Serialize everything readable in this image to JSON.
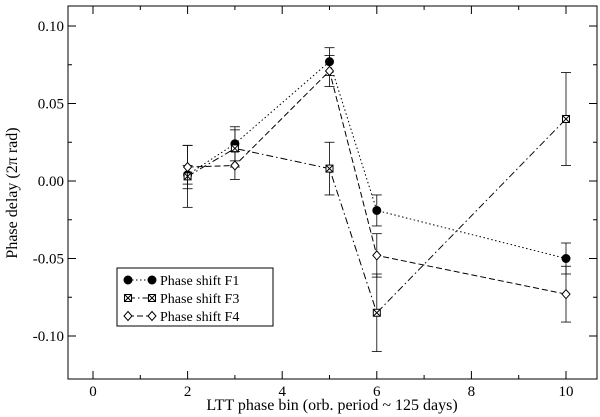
{
  "chart_data": {
    "type": "line",
    "xlabel": "LTT phase bin (orb. period ~ 125 days)",
    "ylabel": "Phase delay (2π rad)",
    "xlim": [
      -0.6,
      10.6
    ],
    "ylim": [
      -0.125,
      0.12
    ],
    "xticks": [
      0,
      2,
      4,
      6,
      8,
      10
    ],
    "yticks": [
      -0.1,
      -0.05,
      0.0,
      0.05,
      0.1
    ],
    "xtick_labels": [
      "0",
      "2",
      "4",
      "6",
      "8",
      "10"
    ],
    "ytick_labels": [
      "-0.10",
      "-0.05",
      "0.00",
      "0.05",
      "0.10"
    ],
    "grid": false,
    "legend_position": "lower-left",
    "series": [
      {
        "name": "Phase shift F1",
        "marker": "filled-circle",
        "dash": "dotted",
        "x": [
          2,
          3,
          5,
          6,
          10
        ],
        "y": [
          0.004,
          0.024,
          0.077,
          -0.019,
          -0.05
        ],
        "yerr": [
          0.006,
          0.011,
          0.009,
          0.01,
          0.01
        ]
      },
      {
        "name": "Phase shift F3",
        "marker": "crossed-square",
        "dash": "dash-dot",
        "x": [
          2,
          3,
          5,
          6,
          10
        ],
        "y": [
          0.003,
          0.021,
          0.008,
          -0.085,
          0.04
        ],
        "yerr": [
          0.02,
          0.012,
          0.017,
          0.025,
          0.03
        ]
      },
      {
        "name": "Phase shift F4",
        "marker": "open-diamond",
        "dash": "dashed",
        "x": [
          2,
          3,
          5,
          6,
          10
        ],
        "y": [
          0.009,
          0.01,
          0.071,
          -0.048,
          -0.073
        ],
        "yerr": [
          0.014,
          0.009,
          0.01,
          0.014,
          0.018
        ]
      }
    ]
  }
}
